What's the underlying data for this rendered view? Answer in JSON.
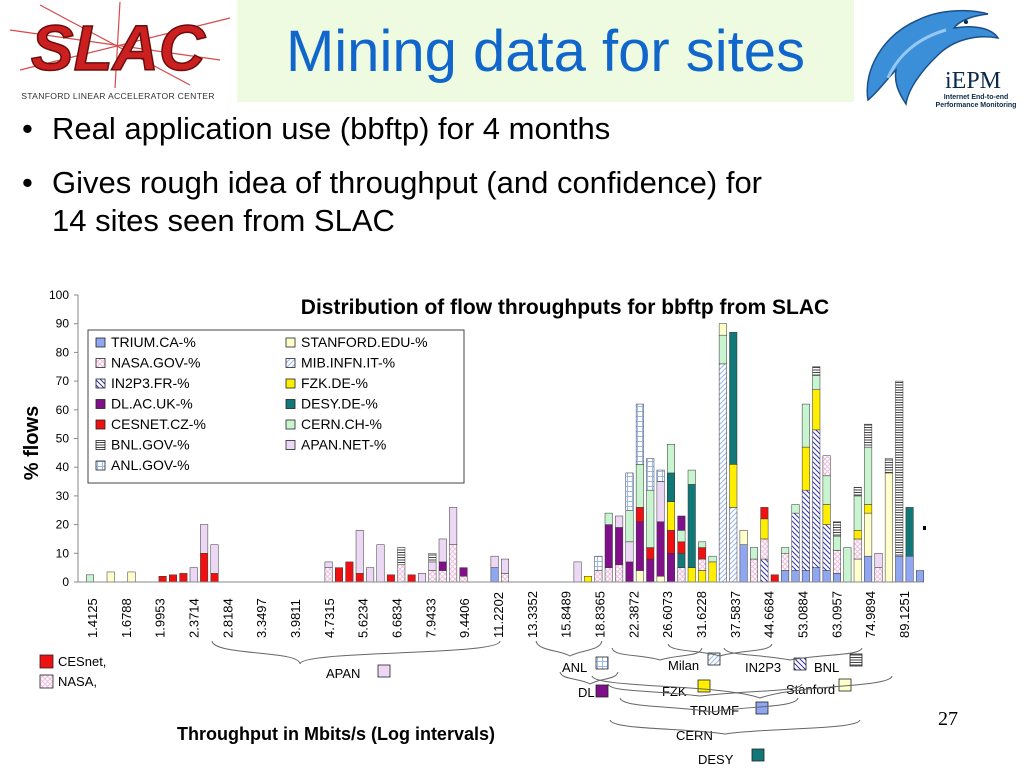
{
  "slide": {
    "title": "Mining data for sites",
    "bullets": [
      {
        "line1": "Real application use (bbftp) for 4 months",
        "line2": ""
      },
      {
        "line1": "Gives rough idea of throughput (and confidence) for",
        "line2": "14 sites seen from SLAC"
      }
    ],
    "page_number": "27",
    "bullet_glyph": "•"
  },
  "logos": {
    "slac": {
      "text": "SLAC",
      "caption": "Stanford Linear Accelerator Center",
      "color": "#cc1f1f"
    },
    "iepm": {
      "text": "iEPM",
      "caption": "Internet End-to-end Performance Monitoring",
      "icon": "dolphin-icon"
    }
  },
  "colors": {
    "title": "#1166cc",
    "title_band": "#eefbe0"
  },
  "chart_data": {
    "type": "bar",
    "title": "Distribution of flow throughputs for bbftp  from SLAC",
    "ylabel": "% flows",
    "xlabel": "Throughput in Mbits/s (Log intervals)",
    "ylim": [
      0,
      100
    ],
    "yticks": [
      0,
      10,
      20,
      30,
      40,
      50,
      60,
      70,
      80,
      90,
      100
    ],
    "stacked": true,
    "legend_position": "top-left",
    "xtick_labels": [
      "1.4125",
      "1.6788",
      "1.9953",
      "2.3714",
      "2.8184",
      "3.3497",
      "3.9811",
      "4.7315",
      "5.6234",
      "6.6834",
      "7.9433",
      "9.4406",
      "11.2202",
      "13.3352",
      "15.8489",
      "18.8365",
      "22.3872",
      "26.6073",
      "31.6228",
      "37.5837",
      "44.6684",
      "53.0884",
      "63.0957",
      "74.9894",
      "89.1251"
    ],
    "series": [
      {
        "name": "TRIUM.CA-%",
        "color": "#8fa6f0",
        "pattern": "solid"
      },
      {
        "name": "NASA.GOV-%",
        "color": "#f0c0e0",
        "pattern": "cross"
      },
      {
        "name": "IN2P3.FR-%",
        "color": "#3a3ab0",
        "pattern": "backslash"
      },
      {
        "name": "DL.AC.UK-%",
        "color": "#80108a",
        "pattern": "solid"
      },
      {
        "name": "CESNET.CZ-%",
        "color": "#ee1111",
        "pattern": "solid"
      },
      {
        "name": "BNL.GOV-%",
        "color": "#444444",
        "pattern": "hstripes"
      },
      {
        "name": "ANL.GOV-%",
        "color": "#9ab8ee",
        "pattern": "grid"
      },
      {
        "name": "STANFORD.EDU-%",
        "color": "#ffffcc",
        "pattern": "solid"
      },
      {
        "name": "MIB.INFN.IT-%",
        "color": "#9ab8ee",
        "pattern": "slash"
      },
      {
        "name": "FZK.DE-%",
        "color": "#ffee00",
        "pattern": "solid"
      },
      {
        "name": "DESY.DE-%",
        "color": "#117777",
        "pattern": "solid"
      },
      {
        "name": "CERN.CH-%",
        "color": "#c8f4d0",
        "pattern": "solid"
      },
      {
        "name": "APAN.NET-%",
        "color": "#ecd8f4",
        "pattern": "solid"
      }
    ],
    "slots": [
      [
        [
          "CERN.CH-%",
          2.5
        ]
      ],
      [],
      [
        [
          "STANFORD.EDU-%",
          3.5
        ]
      ],
      [],
      [
        [
          "STANFORD.EDU-%",
          3.5
        ]
      ],
      [],
      [],
      [
        [
          "CESNET.CZ-%",
          2
        ]
      ],
      [
        [
          "CESNET.CZ-%",
          2.5
        ]
      ],
      [
        [
          "CESNET.CZ-%",
          3
        ]
      ],
      [
        [
          "APAN.NET-%",
          5
        ]
      ],
      [
        [
          "CESNET.CZ-%",
          10
        ],
        [
          "APAN.NET-%",
          10
        ]
      ],
      [
        [
          "CESNET.CZ-%",
          3
        ],
        [
          "APAN.NET-%",
          10
        ]
      ],
      [],
      [],
      [],
      [],
      [],
      [],
      [],
      [],
      [],
      [],
      [
        [
          "NASA.GOV-%",
          5
        ],
        [
          "APAN.NET-%",
          2
        ]
      ],
      [
        [
          "CESNET.CZ-%",
          5
        ]
      ],
      [
        [
          "CESNET.CZ-%",
          7
        ]
      ],
      [
        [
          "CESNET.CZ-%",
          3
        ],
        [
          "APAN.NET-%",
          15
        ]
      ],
      [
        [
          "APAN.NET-%",
          5
        ]
      ],
      [
        [
          "APAN.NET-%",
          13
        ]
      ],
      [
        [
          "CESNET.CZ-%",
          2.5
        ]
      ],
      [
        [
          "NASA.GOV-%",
          6
        ],
        [
          "BNL.GOV-%",
          6
        ]
      ],
      [
        [
          "CESNET.CZ-%",
          2.5
        ]
      ],
      [
        [
          "APAN.NET-%",
          3
        ]
      ],
      [
        [
          "NASA.GOV-%",
          4
        ],
        [
          "APAN.NET-%",
          3
        ],
        [
          "BNL.GOV-%",
          3
        ]
      ],
      [
        [
          "NASA.GOV-%",
          4
        ],
        [
          "DL.AC.UK-%",
          3
        ],
        [
          "APAN.NET-%",
          8
        ]
      ],
      [
        [
          "NASA.GOV-%",
          13
        ],
        [
          "APAN.NET-%",
          13
        ]
      ],
      [
        [
          "NASA.GOV-%",
          2
        ],
        [
          "DL.AC.UK-%",
          3
        ]
      ],
      [],
      [],
      [
        [
          "TRIUM.CA-%",
          5
        ],
        [
          "APAN.NET-%",
          4
        ]
      ],
      [
        [
          "NASA.GOV-%",
          3
        ],
        [
          "APAN.NET-%",
          5
        ]
      ],
      [],
      [],
      [],
      [],
      [],
      [],
      [
        [
          "APAN.NET-%",
          7
        ]
      ],
      [
        [
          "FZK.DE-%",
          2
        ]
      ],
      [
        [
          "NASA.GOV-%",
          4
        ],
        [
          "ANL.GOV-%",
          5
        ]
      ],
      [
        [
          "NASA.GOV-%",
          5
        ],
        [
          "DL.AC.UK-%",
          15
        ],
        [
          "CERN.CH-%",
          4
        ]
      ],
      [
        [
          "NASA.GOV-%",
          6
        ],
        [
          "DL.AC.UK-%",
          13
        ],
        [
          "APAN.NET-%",
          4
        ]
      ],
      [
        [
          "DL.AC.UK-%",
          7
        ],
        [
          "APAN.NET-%",
          7
        ],
        [
          "CERN.CH-%",
          11
        ],
        [
          "ANL.GOV-%",
          13
        ]
      ],
      [
        [
          "STANFORD.EDU-%",
          4
        ],
        [
          "DL.AC.UK-%",
          17
        ],
        [
          "CESNET.CZ-%",
          5
        ],
        [
          "CERN.CH-%",
          15
        ],
        [
          "ANL.GOV-%",
          21
        ]
      ],
      [
        [
          "DL.AC.UK-%",
          8
        ],
        [
          "CESNET.CZ-%",
          4
        ],
        [
          "CERN.CH-%",
          20
        ],
        [
          "ANL.GOV-%",
          11
        ]
      ],
      [
        [
          "STANFORD.EDU-%",
          2
        ],
        [
          "DL.AC.UK-%",
          19
        ],
        [
          "APAN.NET-%",
          14
        ],
        [
          "ANL.GOV-%",
          4
        ]
      ],
      [
        [
          "DL.AC.UK-%",
          10
        ],
        [
          "CESNET.CZ-%",
          8
        ],
        [
          "FZK.DE-%",
          10
        ],
        [
          "DESY.DE-%",
          10
        ],
        [
          "CERN.CH-%",
          10
        ]
      ],
      [
        [
          "NASA.GOV-%",
          5
        ],
        [
          "DESY.DE-%",
          5
        ],
        [
          "CESNET.CZ-%",
          4
        ],
        [
          "CERN.CH-%",
          4
        ],
        [
          "DL.AC.UK-%",
          5
        ]
      ],
      [
        [
          "FZK.DE-%",
          5
        ],
        [
          "DESY.DE-%",
          29
        ],
        [
          "CERN.CH-%",
          5
        ]
      ],
      [
        [
          "FZK.DE-%",
          4
        ],
        [
          "NASA.GOV-%",
          4
        ],
        [
          "CESNET.CZ-%",
          4
        ],
        [
          "CERN.CH-%",
          2
        ]
      ],
      [
        [
          "FZK.DE-%",
          7
        ],
        [
          "CERN.CH-%",
          2
        ]
      ],
      [
        [
          "MIB.INFN.IT-%",
          76
        ],
        [
          "CERN.CH-%",
          10
        ],
        [
          "STANFORD.EDU-%",
          4
        ]
      ],
      [
        [
          "MIB.INFN.IT-%",
          26
        ],
        [
          "FZK.DE-%",
          15
        ],
        [
          "DESY.DE-%",
          46
        ]
      ],
      [
        [
          "TRIUM.CA-%",
          13
        ],
        [
          "STANFORD.EDU-%",
          5
        ]
      ],
      [
        [
          "NASA.GOV-%",
          8
        ],
        [
          "CERN.CH-%",
          4
        ]
      ],
      [
        [
          "IN2P3.FR-%",
          8
        ],
        [
          "NASA.GOV-%",
          7
        ],
        [
          "FZK.DE-%",
          7
        ],
        [
          "CESNET.CZ-%",
          4
        ]
      ],
      [
        [
          "CESNET.CZ-%",
          2.5
        ]
      ],
      [
        [
          "TRIUM.CA-%",
          4
        ],
        [
          "NASA.GOV-%",
          6
        ],
        [
          "CERN.CH-%",
          2
        ]
      ],
      [
        [
          "TRIUM.CA-%",
          4
        ],
        [
          "IN2P3.FR-%",
          20
        ],
        [
          "CERN.CH-%",
          3
        ]
      ],
      [
        [
          "TRIUM.CA-%",
          4
        ],
        [
          "IN2P3.FR-%",
          28
        ],
        [
          "FZK.DE-%",
          15
        ],
        [
          "CERN.CH-%",
          15
        ]
      ],
      [
        [
          "TRIUM.CA-%",
          5
        ],
        [
          "IN2P3.FR-%",
          48
        ],
        [
          "FZK.DE-%",
          14
        ],
        [
          "CERN.CH-%",
          5
        ],
        [
          "BNL.GOV-%",
          3
        ]
      ],
      [
        [
          "TRIUM.CA-%",
          4
        ],
        [
          "IN2P3.FR-%",
          16
        ],
        [
          "FZK.DE-%",
          7
        ],
        [
          "CERN.CH-%",
          10
        ],
        [
          "NASA.GOV-%",
          7
        ]
      ],
      [
        [
          "TRIUM.CA-%",
          3
        ],
        [
          "NASA.GOV-%",
          8
        ],
        [
          "CERN.CH-%",
          5
        ],
        [
          "BNL.GOV-%",
          5
        ]
      ],
      [
        [
          "CERN.CH-%",
          12
        ]
      ],
      [
        [
          "STANFORD.EDU-%",
          8
        ],
        [
          "NASA.GOV-%",
          7
        ],
        [
          "FZK.DE-%",
          3
        ],
        [
          "CERN.CH-%",
          12
        ],
        [
          "BNL.GOV-%",
          3
        ]
      ],
      [
        [
          "TRIUM.CA-%",
          9
        ],
        [
          "STANFORD.EDU-%",
          15
        ],
        [
          "FZK.DE-%",
          3
        ],
        [
          "CERN.CH-%",
          20
        ],
        [
          "BNL.GOV-%",
          8
        ]
      ],
      [
        [
          "NASA.GOV-%",
          5
        ],
        [
          "APAN.NET-%",
          5
        ]
      ],
      [
        [
          "STANFORD.EDU-%",
          38
        ],
        [
          "BNL.GOV-%",
          5
        ]
      ],
      [
        [
          "TRIUM.CA-%",
          9
        ],
        [
          "BNL.GOV-%",
          61
        ]
      ],
      [
        [
          "TRIUM.CA-%",
          9
        ],
        [
          "DESY.DE-%",
          17
        ]
      ],
      [
        [
          "TRIUM.CA-%",
          4
        ]
      ]
    ]
  },
  "annotations": {
    "site_labels": [
      {
        "text": "CESnet,",
        "series": "CESNET.CZ-%"
      },
      {
        "text": "NASA,",
        "series": "NASA.GOV-%"
      },
      {
        "text": "APAN",
        "series": "APAN.NET-%"
      },
      {
        "text": "ANL",
        "series": "ANL.GOV-%"
      },
      {
        "text": "Milan",
        "series": "MIB.INFN.IT-%"
      },
      {
        "text": "IN2P3",
        "series": "IN2P3.FR-%"
      },
      {
        "text": "BNL",
        "series": "BNL.GOV-%"
      },
      {
        "text": "DL",
        "series": "DL.AC.UK-%"
      },
      {
        "text": "FZK",
        "series": "FZK.DE-%"
      },
      {
        "text": "Stanford",
        "series": "STANFORD.EDU-%"
      },
      {
        "text": "TRIUMF",
        "series": "TRIUM.CA-%"
      },
      {
        "text": "CERN",
        "series": ""
      },
      {
        "text": "DESY",
        "series": "DESY.DE-%"
      }
    ]
  }
}
